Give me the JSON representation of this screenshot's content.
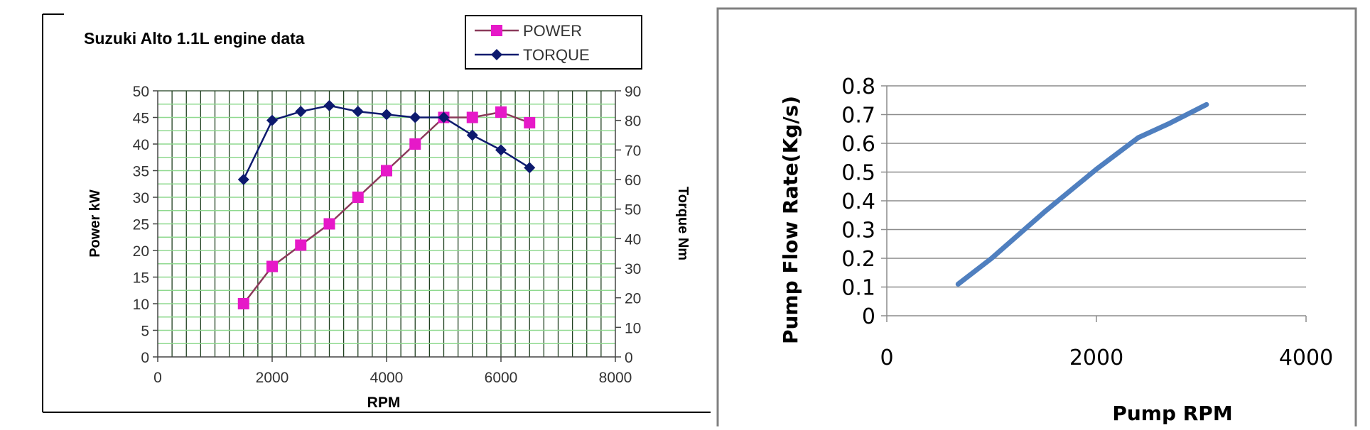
{
  "colors": {
    "power": "#e619c8",
    "power_line": "#8b3a5a",
    "torque": "#0d1a6e",
    "grid_green": "#8fd98f",
    "grid_dark": "#1f3f1f",
    "flow_line": "#4f7fbf",
    "frame": "#808080"
  },
  "chart_data": [
    {
      "type": "line",
      "title": "Suzuki Alto 1.1L engine data",
      "xlabel": "RPM",
      "ylabel": "Power kW",
      "y2label": "Torque Nm",
      "xlim": [
        0,
        8000
      ],
      "ylim": [
        0,
        50
      ],
      "y2lim": [
        0,
        90
      ],
      "x_ticks": [
        "0",
        "2000",
        "4000",
        "6000",
        "8000"
      ],
      "y_ticks": [
        "0",
        "5",
        "10",
        "15",
        "20",
        "25",
        "30",
        "35",
        "40",
        "45",
        "50"
      ],
      "y2_ticks": [
        "0",
        "10",
        "20",
        "30",
        "40",
        "50",
        "60",
        "70",
        "80",
        "90"
      ],
      "grid": true,
      "legend": "top-right",
      "series": [
        {
          "name": "POWER",
          "axis": "left",
          "marker": "square",
          "x": [
            1500,
            2000,
            2500,
            3000,
            3500,
            4000,
            4500,
            5000,
            5500,
            6000,
            6500
          ],
          "y": [
            10,
            17,
            21,
            25,
            30,
            35,
            40,
            45,
            45,
            46,
            44
          ]
        },
        {
          "name": "TORQUE",
          "axis": "right",
          "marker": "diamond",
          "x": [
            1500,
            2000,
            2500,
            3000,
            3500,
            4000,
            4500,
            5000,
            5500,
            6000,
            6500
          ],
          "y": [
            60,
            80,
            83,
            85,
            83,
            82,
            81,
            81,
            75,
            70,
            64
          ]
        }
      ]
    },
    {
      "type": "line",
      "title": "",
      "xlabel": "Pump RPM",
      "ylabel": "Pump Flow Rate(Kg/s)",
      "xlim": [
        0,
        4000
      ],
      "ylim": [
        0,
        0.8
      ],
      "x_ticks": [
        "0",
        "2000",
        "4000"
      ],
      "y_ticks": [
        "0",
        "0.1",
        "0.2",
        "0.3",
        "0.4",
        "0.5",
        "0.6",
        "0.7",
        "0.8"
      ],
      "grid": true,
      "series": [
        {
          "x": [
            680,
            1000,
            1500,
            2000,
            2400,
            2700,
            3050
          ],
          "y": [
            0.11,
            0.2,
            0.36,
            0.51,
            0.62,
            0.67,
            0.735
          ]
        }
      ]
    }
  ]
}
